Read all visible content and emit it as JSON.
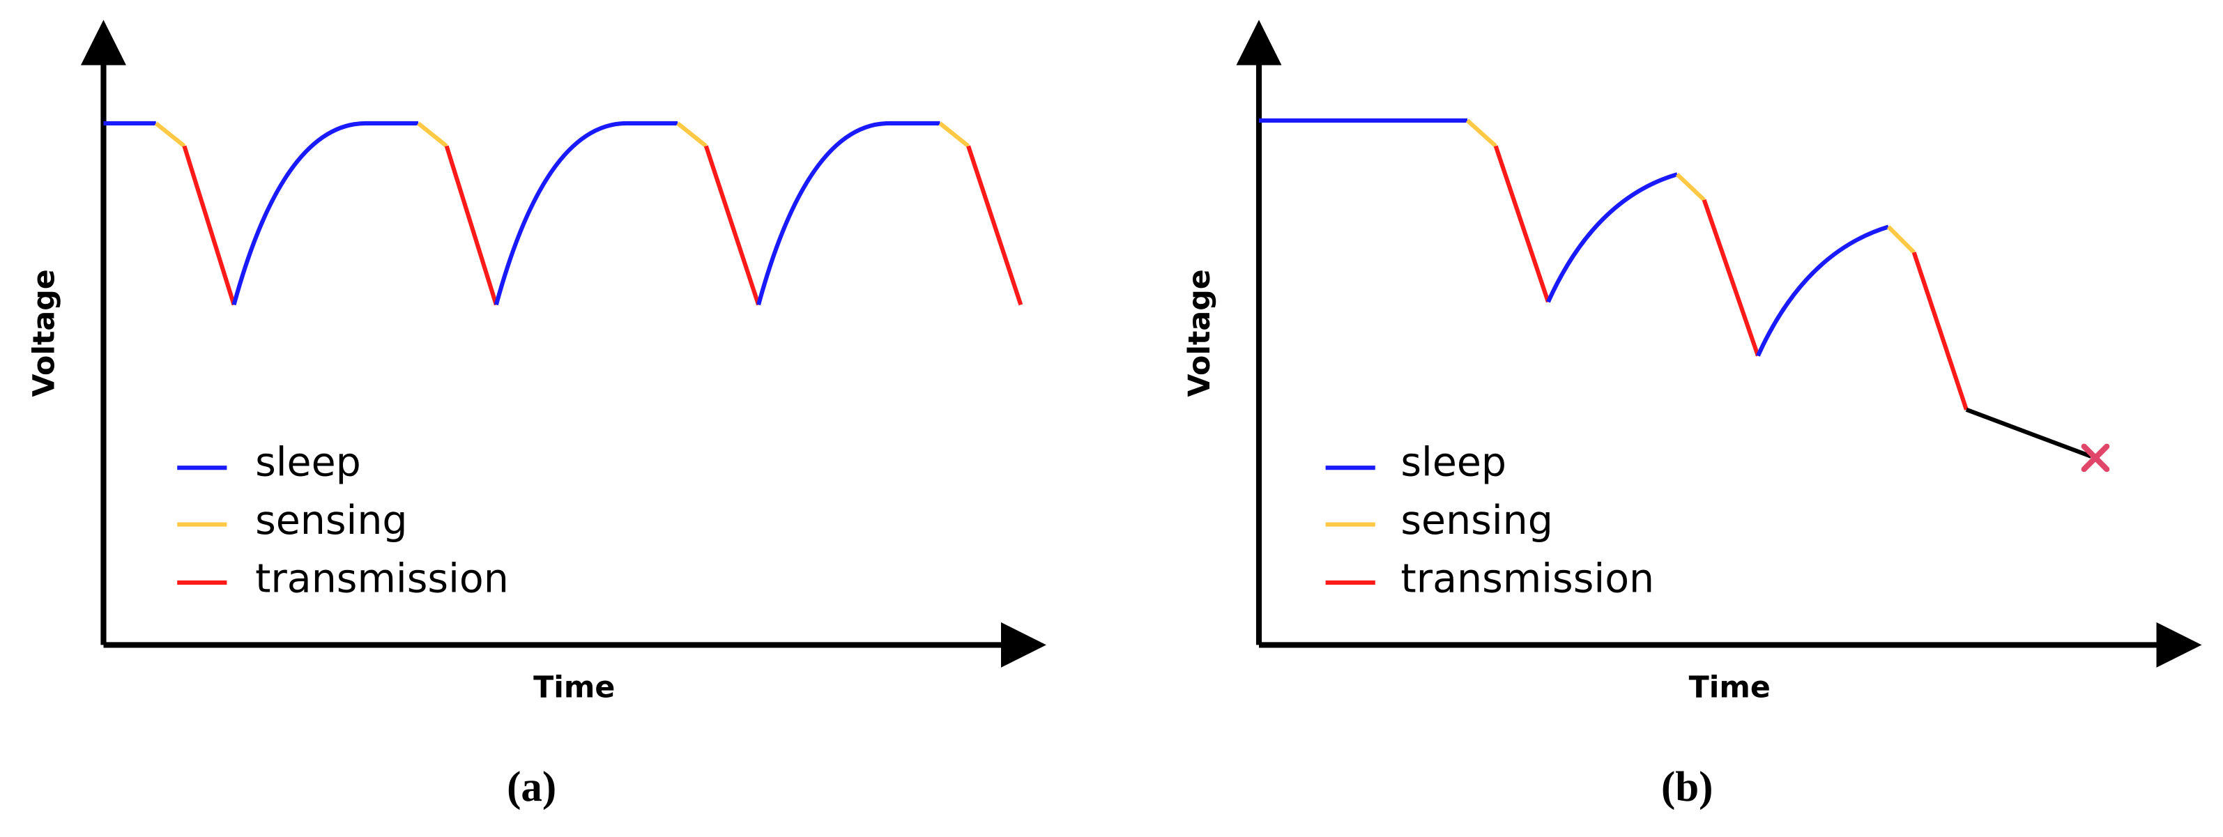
{
  "panels": [
    {
      "y_axis_label": "Voltage",
      "x_axis_label": "Time",
      "legend": [
        "sleep",
        "sensing",
        "transmission"
      ],
      "caption": "(a)"
    },
    {
      "y_axis_label": "Voltage",
      "x_axis_label": "Time",
      "legend": [
        "sleep",
        "sensing",
        "transmission"
      ],
      "caption": "(b)"
    }
  ]
}
